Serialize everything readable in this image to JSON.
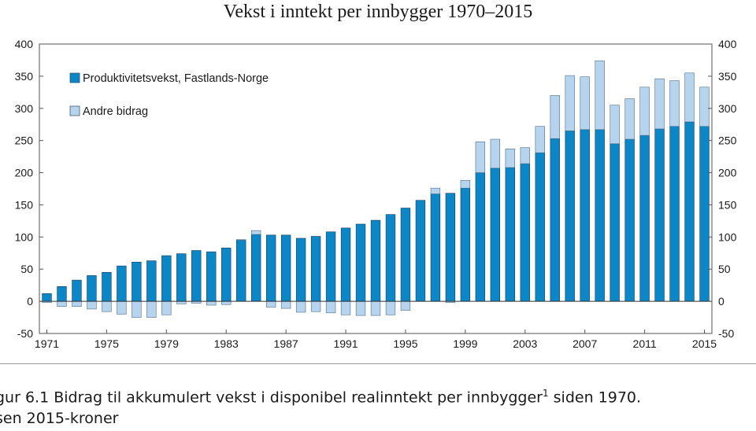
{
  "chart_data": {
    "type": "bar",
    "stacked": true,
    "title": "Vekst i inntekt per innbygger 1970–2015",
    "x": [
      1971,
      1972,
      1973,
      1974,
      1975,
      1976,
      1977,
      1978,
      1979,
      1980,
      1981,
      1982,
      1983,
      1984,
      1985,
      1986,
      1987,
      1988,
      1989,
      1990,
      1991,
      1992,
      1993,
      1994,
      1995,
      1996,
      1997,
      1998,
      1999,
      2000,
      2001,
      2002,
      2003,
      2004,
      2005,
      2006,
      2007,
      2008,
      2009,
      2010,
      2011,
      2012,
      2013,
      2014,
      2015
    ],
    "x_tick_labels": [
      "1971",
      "1975",
      "1979",
      "1983",
      "1987",
      "1991",
      "1995",
      "1999",
      "2003",
      "2007",
      "2011",
      "2015"
    ],
    "y_ticks": [
      400,
      350,
      300,
      250,
      200,
      150,
      100,
      50,
      0,
      -50
    ],
    "ylim": [
      -50,
      400
    ],
    "series": [
      {
        "name": "Produktivitetsvekst, Fastlands-Norge",
        "color": "#0b86c6",
        "values": [
          12,
          23,
          33,
          40,
          45,
          55,
          61,
          63,
          71,
          74,
          79,
          77,
          83,
          95,
          104,
          103,
          103,
          98,
          101,
          108,
          114,
          120,
          126,
          135,
          145,
          157,
          167,
          168,
          176,
          200,
          207,
          208,
          214,
          231,
          253,
          265,
          267,
          267,
          245,
          252,
          258,
          268,
          272,
          279,
          272
        ]
      },
      {
        "name": "Andre bidrag",
        "color": "#b7d4ef",
        "values": [
          -2,
          -8,
          -8,
          -12,
          -16,
          -20,
          -25,
          -25,
          -21,
          -4,
          -3,
          -6,
          -5,
          1,
          6,
          -9,
          -11,
          -17,
          -16,
          -18,
          -21,
          -22,
          -22,
          -21,
          -14,
          0,
          9,
          -2,
          12,
          48,
          45,
          29,
          25,
          41,
          67,
          86,
          82,
          107,
          60,
          63,
          75,
          78,
          71,
          76,
          61
        ]
      }
    ],
    "legend_position": "top-left",
    "grid": false
  },
  "caption": {
    "line1_text": "gur 6.1  Bidrag til akkumulert vekst i disponibel realinntekt per innbygger",
    "line1_sup": "1",
    "line1_end": " siden 1970.",
    "line2_text": "sen 2015-kroner"
  }
}
